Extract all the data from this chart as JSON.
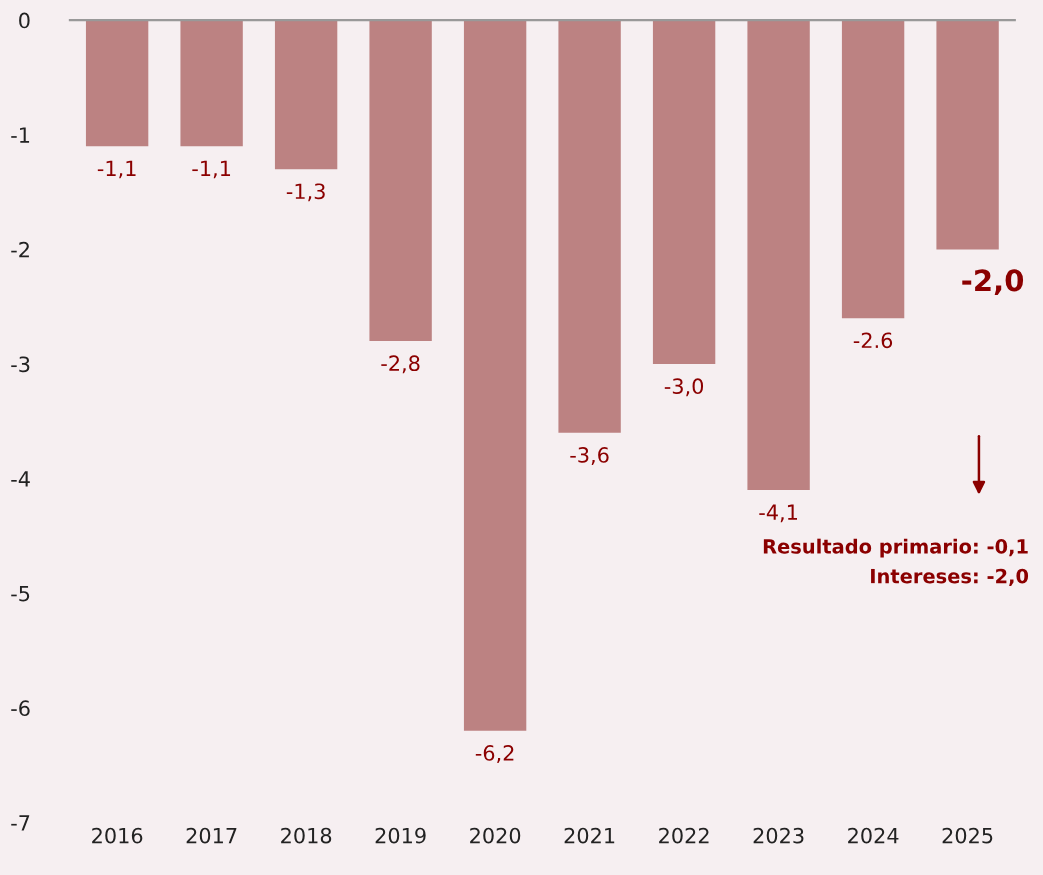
{
  "chart_data": {
    "type": "bar",
    "categories": [
      "2016",
      "2017",
      "2018",
      "2019",
      "2020",
      "2021",
      "2022",
      "2023",
      "2024",
      "2025"
    ],
    "values": [
      -1.1,
      -1.1,
      -1.3,
      -2.8,
      -6.2,
      -3.6,
      -3.0,
      -4.1,
      -2.6,
      -2.0
    ],
    "value_labels": [
      "-1,1",
      "-1,1",
      "-1,3",
      "-2,8",
      "-6,2",
      "-3,6",
      "-3,0",
      "-4,1",
      "-2.6",
      "-2,0"
    ],
    "color": "#bc8282",
    "ylim": [
      -7,
      0
    ],
    "yticks": [
      0,
      -1,
      -2,
      -3,
      -4,
      -5,
      -6,
      -7
    ],
    "grid": false,
    "legend": false,
    "annotations": [
      "Resultado primario: -0,1",
      "Intereses: -2,0"
    ]
  }
}
